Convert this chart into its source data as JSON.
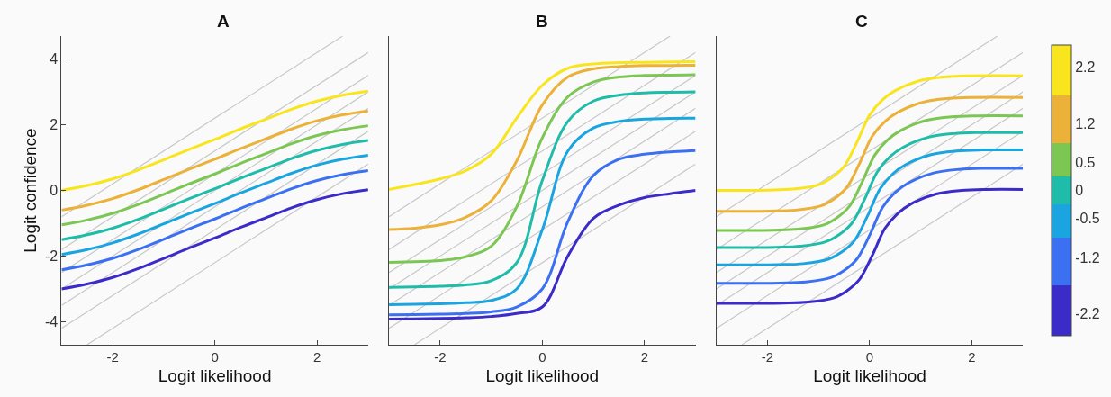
{
  "chart_data": [
    {
      "type": "line",
      "title": "A",
      "xlabel": "Logit likelihood",
      "ylabel": "Logit confidence",
      "xlim": [
        -3,
        3
      ],
      "xticks": [
        -2,
        0,
        2
      ],
      "ylim": [
        -4.7,
        4.7
      ],
      "yticks": [
        -4,
        -2,
        0,
        2,
        4
      ],
      "x": [
        -3,
        -2.5,
        -2,
        -1.5,
        -1,
        -0.5,
        0,
        0.5,
        1,
        1.5,
        2,
        2.5,
        3
      ],
      "series": [
        {
          "color": "#c8c8c8",
          "x": [
            -2.5,
            3
          ],
          "values": [
            -4.7,
            0.8
          ]
        },
        {
          "color": "#c8c8c8",
          "x": [
            -3,
            3
          ],
          "values": [
            -4.2,
            1.8
          ]
        },
        {
          "color": "#c8c8c8",
          "x": [
            -3,
            3
          ],
          "values": [
            -3.5,
            2.5
          ]
        },
        {
          "color": "#c8c8c8",
          "x": [
            -3,
            3
          ],
          "values": [
            -3,
            3
          ]
        },
        {
          "color": "#c8c8c8",
          "x": [
            -3,
            3
          ],
          "values": [
            -2.5,
            3.5
          ]
        },
        {
          "color": "#c8c8c8",
          "x": [
            -3,
            3
          ],
          "values": [
            -1.8,
            4.2
          ]
        },
        {
          "color": "#c8c8c8",
          "x": [
            -3,
            2.5
          ],
          "values": [
            -0.8,
            4.7
          ]
        },
        {
          "color": "#3b2bc8",
          "values": [
            -3.0,
            -2.85,
            -2.65,
            -2.38,
            -2.07,
            -1.75,
            -1.45,
            -1.13,
            -0.83,
            -0.53,
            -0.28,
            -0.1,
            0.02
          ]
        },
        {
          "color": "#3c70f2",
          "values": [
            -2.42,
            -2.27,
            -2.07,
            -1.8,
            -1.49,
            -1.17,
            -0.87,
            -0.55,
            -0.25,
            0.05,
            0.3,
            0.48,
            0.6
          ]
        },
        {
          "color": "#1ba5e0",
          "values": [
            -1.95,
            -1.8,
            -1.6,
            -1.33,
            -1.02,
            -0.7,
            -0.4,
            -0.08,
            0.22,
            0.52,
            0.77,
            0.95,
            1.07
          ]
        },
        {
          "color": "#1fbcaa",
          "values": [
            -1.5,
            -1.35,
            -1.15,
            -0.88,
            -0.57,
            -0.25,
            0.05,
            0.37,
            0.67,
            0.97,
            1.22,
            1.4,
            1.52
          ]
        },
        {
          "color": "#7cc653",
          "values": [
            -1.05,
            -0.9,
            -0.7,
            -0.43,
            -0.12,
            0.2,
            0.5,
            0.82,
            1.12,
            1.42,
            1.67,
            1.85,
            1.97
          ]
        },
        {
          "color": "#ecb138",
          "values": [
            -0.6,
            -0.45,
            -0.25,
            0.02,
            0.33,
            0.65,
            0.95,
            1.27,
            1.57,
            1.87,
            2.12,
            2.3,
            2.42
          ]
        },
        {
          "color": "#f9e51d",
          "values": [
            0.0,
            0.15,
            0.35,
            0.62,
            0.93,
            1.25,
            1.55,
            1.87,
            2.17,
            2.47,
            2.72,
            2.9,
            3.02
          ]
        }
      ]
    },
    {
      "type": "line",
      "title": "B",
      "xlabel": "Logit likelihood",
      "xlim": [
        -3,
        3
      ],
      "xticks": [
        -2,
        0,
        2
      ],
      "ylim": [
        -4.7,
        4.7
      ],
      "yticks": [
        -4,
        -2,
        0,
        2,
        4
      ],
      "tick_labels": "x",
      "x": [
        -3,
        -2.5,
        -2,
        -1.5,
        -1,
        -0.5,
        0,
        0.5,
        1,
        1.5,
        2,
        2.5,
        3
      ],
      "series": [
        {
          "color": "#c8c8c8",
          "x": [
            -2.5,
            3
          ],
          "values": [
            -4.7,
            0.8
          ]
        },
        {
          "color": "#c8c8c8",
          "x": [
            -3,
            3
          ],
          "values": [
            -4.2,
            1.8
          ]
        },
        {
          "color": "#c8c8c8",
          "x": [
            -3,
            3
          ],
          "values": [
            -3.5,
            2.5
          ]
        },
        {
          "color": "#c8c8c8",
          "x": [
            -3,
            3
          ],
          "values": [
            -3,
            3
          ]
        },
        {
          "color": "#c8c8c8",
          "x": [
            -3,
            3
          ],
          "values": [
            -2.5,
            3.5
          ]
        },
        {
          "color": "#c8c8c8",
          "x": [
            -3,
            3
          ],
          "values": [
            -1.8,
            4.2
          ]
        },
        {
          "color": "#c8c8c8",
          "x": [
            -3,
            2.5
          ],
          "values": [
            -0.8,
            4.7
          ]
        },
        {
          "color": "#3b2bc8",
          "values": [
            -3.92,
            -3.91,
            -3.9,
            -3.88,
            -3.84,
            -3.75,
            -3.55,
            -2.0,
            -0.85,
            -0.45,
            -0.22,
            -0.1,
            0.0
          ]
        },
        {
          "color": "#3c70f2",
          "values": [
            -3.79,
            -3.78,
            -3.77,
            -3.75,
            -3.7,
            -3.55,
            -3.0,
            -0.95,
            0.45,
            0.95,
            1.1,
            1.17,
            1.21
          ]
        },
        {
          "color": "#1ba5e0",
          "values": [
            -3.48,
            -3.47,
            -3.45,
            -3.42,
            -3.35,
            -3.0,
            -1.2,
            1.2,
            1.9,
            2.1,
            2.17,
            2.19,
            2.2
          ]
        },
        {
          "color": "#1fbcaa",
          "values": [
            -2.95,
            -2.94,
            -2.92,
            -2.88,
            -2.75,
            -2.2,
            0.3,
            2.1,
            2.72,
            2.9,
            2.97,
            2.99,
            3.0
          ]
        },
        {
          "color": "#7cc653",
          "values": [
            -2.19,
            -2.17,
            -2.14,
            -2.02,
            -1.7,
            -0.5,
            1.6,
            2.85,
            3.3,
            3.45,
            3.5,
            3.51,
            3.52
          ]
        },
        {
          "color": "#ecb138",
          "values": [
            -1.19,
            -1.15,
            -1.05,
            -0.82,
            -0.32,
            0.9,
            2.6,
            3.45,
            3.7,
            3.77,
            3.8,
            3.8,
            3.81
          ]
        },
        {
          "color": "#f9e51d",
          "values": [
            0.03,
            0.18,
            0.35,
            0.6,
            1.1,
            2.2,
            3.2,
            3.72,
            3.85,
            3.89,
            3.9,
            3.91,
            3.92
          ]
        }
      ]
    },
    {
      "type": "line",
      "title": "C",
      "xlabel": "Logit likelihood",
      "xlim": [
        -3,
        3
      ],
      "xticks": [
        -2,
        0,
        2
      ],
      "ylim": [
        -4.7,
        4.7
      ],
      "yticks": [
        -4,
        -2,
        0,
        2,
        4
      ],
      "tick_labels": "x",
      "clim": [
        -2.6,
        2.6
      ],
      "cticks": [
        -2.2,
        -1.2,
        -0.5,
        0,
        0.5,
        1.2,
        2.2
      ],
      "series": [
        {
          "color": "#c8c8c8",
          "x": [
            -2.5,
            3
          ],
          "values": [
            -4.7,
            0.8
          ]
        },
        {
          "color": "#c8c8c8",
          "x": [
            -3,
            3
          ],
          "values": [
            -4.2,
            1.8
          ]
        },
        {
          "color": "#c8c8c8",
          "x": [
            -3,
            3
          ],
          "values": [
            -3.5,
            2.5
          ]
        },
        {
          "color": "#c8c8c8",
          "x": [
            -3,
            3
          ],
          "values": [
            -3,
            3
          ]
        },
        {
          "color": "#c8c8c8",
          "x": [
            -3,
            3
          ],
          "values": [
            -2.5,
            3.5
          ]
        },
        {
          "color": "#c8c8c8",
          "x": [
            -3,
            3
          ],
          "values": [
            -1.8,
            4.2
          ]
        },
        {
          "color": "#c8c8c8",
          "x": [
            -3,
            2.5
          ],
          "values": [
            -0.8,
            4.7
          ]
        },
        {
          "color": "#3b2bc8",
          "x": [
            -3,
            -1.7,
            -1.2,
            -0.7,
            -0.45,
            -0.2,
            0.05,
            0.3,
            0.55,
            0.8,
            1.3,
            1.8,
            2.3,
            3
          ],
          "values": [
            -3.44,
            -3.43,
            -3.4,
            -3.27,
            -3.06,
            -2.71,
            -1.98,
            -1.15,
            -0.7,
            -0.42,
            -0.11,
            0,
            0.03,
            0.03
          ]
        },
        {
          "color": "#3c70f2",
          "x": [
            -3,
            -1.75,
            -1.25,
            -0.75,
            -0.5,
            -0.25,
            0,
            0.25,
            0.5,
            0.75,
            1.25,
            1.75,
            2.25,
            3
          ],
          "values": [
            -2.83,
            -2.82,
            -2.79,
            -2.65,
            -2.44,
            -2.09,
            -1.36,
            -0.52,
            -0.06,
            0.22,
            0.53,
            0.64,
            0.67,
            0.67
          ]
        },
        {
          "color": "#1ba5e0",
          "x": [
            -3,
            -1.8,
            -1.3,
            -0.8,
            -0.55,
            -0.3,
            -0.05,
            0.2,
            0.45,
            0.7,
            1.2,
            1.7,
            2.2,
            3
          ],
          "values": [
            -2.27,
            -2.26,
            -2.23,
            -2.09,
            -1.88,
            -1.53,
            -0.8,
            0.04,
            0.5,
            0.78,
            1.09,
            1.2,
            1.23,
            1.23
          ]
        },
        {
          "color": "#1fbcaa",
          "x": [
            -3,
            -1.85,
            -1.35,
            -0.85,
            -0.6,
            -0.35,
            -0.1,
            0.15,
            0.4,
            0.65,
            1.15,
            1.65,
            2.15,
            3
          ],
          "values": [
            -1.74,
            -1.73,
            -1.7,
            -1.56,
            -1.35,
            -1.0,
            -0.27,
            0.57,
            1.03,
            1.31,
            1.62,
            1.73,
            1.76,
            1.76
          ]
        },
        {
          "color": "#7cc653",
          "x": [
            -3,
            -1.9,
            -1.4,
            -0.9,
            -0.65,
            -0.4,
            -0.15,
            0.1,
            0.35,
            0.6,
            1.1,
            1.6,
            2.1,
            3
          ],
          "values": [
            -1.22,
            -1.21,
            -1.18,
            -1.05,
            -0.84,
            -0.49,
            0.25,
            1.08,
            1.54,
            1.82,
            2.13,
            2.24,
            2.27,
            2.27
          ]
        },
        {
          "color": "#ecb138",
          "x": [
            -3,
            -1.95,
            -1.45,
            -0.95,
            -0.7,
            -0.45,
            -0.2,
            0.05,
            0.3,
            0.55,
            1.05,
            1.55,
            2.05,
            3
          ],
          "values": [
            -0.64,
            -0.63,
            -0.6,
            -0.47,
            -0.26,
            0.09,
            0.82,
            1.65,
            2.1,
            2.38,
            2.69,
            2.8,
            2.83,
            2.83
          ]
        },
        {
          "color": "#f9e51d",
          "x": [
            -3,
            -2,
            -1.5,
            -1,
            -0.75,
            -0.5,
            -0.25,
            0,
            0.25,
            0.5,
            1,
            1.5,
            2,
            3
          ],
          "values": [
            0,
            0.01,
            0.04,
            0.17,
            0.38,
            0.73,
            1.47,
            2.3,
            2.76,
            3.04,
            3.35,
            3.46,
            3.49,
            3.49
          ]
        }
      ]
    }
  ]
}
